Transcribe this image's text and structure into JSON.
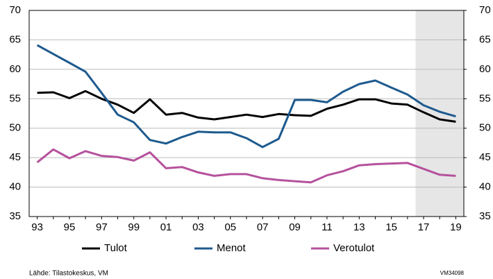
{
  "chart_data": {
    "type": "line",
    "categories": [
      "93",
      null,
      "95",
      null,
      "97",
      null,
      "99",
      null,
      "01",
      null,
      "03",
      null,
      "05",
      null,
      "07",
      null,
      "09",
      null,
      "11",
      null,
      "13",
      null,
      "15",
      null,
      "17",
      null,
      "19"
    ],
    "series": [
      {
        "name": "Tulot",
        "color": "#000000",
        "values": [
          56.0,
          56.1,
          55.1,
          56.3,
          55.0,
          54.0,
          52.6,
          54.9,
          52.3,
          52.6,
          51.8,
          51.5,
          51.9,
          52.3,
          51.9,
          52.4,
          52.2,
          52.1,
          53.3,
          54.0,
          54.9,
          54.9,
          54.2,
          54.0,
          52.7,
          51.5,
          51.1
        ]
      },
      {
        "name": "Menot",
        "color": "#1d5a8e",
        "values": [
          64.1,
          62.6,
          61.1,
          59.6,
          56.0,
          52.3,
          51.0,
          48.0,
          47.4,
          48.5,
          49.4,
          49.3,
          49.3,
          48.3,
          46.8,
          48.2,
          54.8,
          54.8,
          54.4,
          56.2,
          57.5,
          58.1,
          56.9,
          55.7,
          53.9,
          52.8,
          52.0
        ]
      },
      {
        "name": "Verotulot",
        "color": "#b5519c",
        "values": [
          44.2,
          46.4,
          44.9,
          46.1,
          45.3,
          45.1,
          44.5,
          45.9,
          43.2,
          43.4,
          42.5,
          41.9,
          42.2,
          42.2,
          41.5,
          41.2,
          41.0,
          40.8,
          42.0,
          42.7,
          43.7,
          43.9,
          44.0,
          44.1,
          43.1,
          42.1,
          41.9
        ]
      }
    ],
    "ylim": [
      35,
      70
    ],
    "yticks": [
      35,
      40,
      45,
      50,
      55,
      60,
      65,
      70
    ],
    "y2lim": [
      35,
      70
    ],
    "y2ticks": [
      35,
      40,
      45,
      50,
      55,
      60,
      65,
      70
    ],
    "grid": true,
    "legend": "bottom",
    "source": "Lähde: Tilastokeskus, VM",
    "note": "VM34098"
  }
}
